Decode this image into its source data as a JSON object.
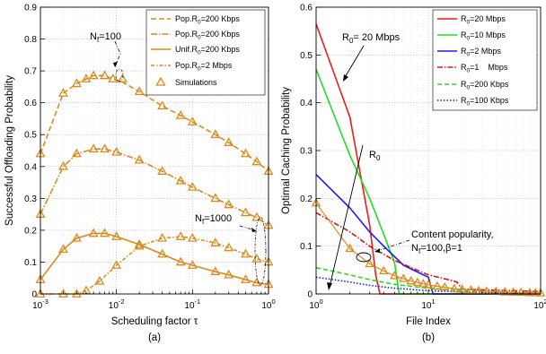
{
  "chart_data": [
    {
      "type": "line",
      "panel_label": "(a)",
      "xlabel": "Scheduling factor τ",
      "ylabel": "Successful Offloading Probability",
      "x_scale": "log",
      "xlim": [
        0.001,
        1
      ],
      "ylim": [
        0,
        0.9
      ],
      "x_ticks": [
        {
          "value": 0.001,
          "base": "10",
          "exp": "-3"
        },
        {
          "value": 0.01,
          "base": "10",
          "exp": "-2"
        },
        {
          "value": 0.1,
          "base": "10",
          "exp": "-1"
        },
        {
          "value": 1,
          "base": "10",
          "exp": "0"
        }
      ],
      "y_ticks": [
        0,
        0.1,
        0.2,
        0.3,
        0.4,
        0.5,
        0.6,
        0.7,
        0.8,
        0.9
      ],
      "y_tick_labels": [
        "0",
        "0.1",
        "0.2",
        "0.3",
        "0.4",
        "0.5",
        "0.6",
        "0.7",
        "0.8",
        "0.9"
      ],
      "grid": true,
      "legend_position": "top-right",
      "series": [
        {
          "name": "Pop.R0=200 Kbps",
          "legend_main": "Pop.R",
          "legend_sub": "0",
          "legend_rest": "=200 Kbps",
          "color": "#d98a1f",
          "dash": "6 3",
          "x": [
            0.001,
            0.002,
            0.003,
            0.004,
            0.005,
            0.007,
            0.009,
            0.012,
            0.02,
            0.04,
            0.07,
            0.1,
            0.2,
            0.3,
            0.5,
            0.7,
            1.0
          ],
          "y": [
            0.44,
            0.63,
            0.66,
            0.675,
            0.685,
            0.685,
            0.675,
            0.665,
            0.635,
            0.59,
            0.56,
            0.54,
            0.5,
            0.475,
            0.44,
            0.415,
            0.385
          ]
        },
        {
          "name": "Pop.R0=200 Kbps",
          "legend_main": "Pop.R",
          "legend_sub": "0",
          "legend_rest": "=200 Kbps",
          "color": "#d98a1f",
          "dash": "7 2 1.5 2",
          "x": [
            0.001,
            0.002,
            0.003,
            0.005,
            0.007,
            0.01,
            0.02,
            0.04,
            0.07,
            0.1,
            0.2,
            0.3,
            0.5,
            0.7,
            1.0
          ],
          "y": [
            0.25,
            0.4,
            0.44,
            0.455,
            0.455,
            0.445,
            0.42,
            0.385,
            0.355,
            0.335,
            0.3,
            0.28,
            0.255,
            0.24,
            0.215
          ]
        },
        {
          "name": "Unif.R0=200 Kbps",
          "legend_main": "Unif.R",
          "legend_sub": "0",
          "legend_rest": "=200 Kbps",
          "color": "#d98a1f",
          "dash": "",
          "x": [
            0.001,
            0.002,
            0.003,
            0.005,
            0.007,
            0.01,
            0.02,
            0.04,
            0.07,
            0.1,
            0.2,
            0.3,
            0.5,
            0.7,
            1.0
          ],
          "y": [
            0.045,
            0.14,
            0.175,
            0.19,
            0.19,
            0.18,
            0.155,
            0.125,
            0.1,
            0.09,
            0.07,
            0.06,
            0.045,
            0.035,
            0.03
          ]
        },
        {
          "name": "Pop.R0=2 Mbps",
          "legend_main": "Pop.R",
          "legend_sub": "0",
          "legend_rest": "=2 Mbps",
          "color": "#d98a1f",
          "dash": "4 2 1.5 2",
          "x": [
            0.001,
            0.002,
            0.003,
            0.004,
            0.006,
            0.01,
            0.02,
            0.04,
            0.07,
            0.1,
            0.2,
            0.3,
            0.5,
            0.7,
            1.0
          ],
          "y": [
            0.0,
            0.0,
            0.0,
            0.01,
            0.04,
            0.09,
            0.15,
            0.175,
            0.18,
            0.175,
            0.16,
            0.145,
            0.125,
            0.11,
            0.1
          ]
        }
      ],
      "simulations": {
        "name": "Simulations",
        "color": "#d98a1f",
        "sets": [
          {
            "x": [
              0.001,
              0.002,
              0.003,
              0.004,
              0.005,
              0.007,
              0.009,
              0.012,
              0.02,
              0.04,
              0.07,
              0.1,
              0.2,
              0.3,
              0.5,
              0.7,
              1.0
            ],
            "y": [
              0.44,
              0.63,
              0.66,
              0.675,
              0.685,
              0.685,
              0.675,
              0.675,
              0.635,
              0.59,
              0.56,
              0.54,
              0.5,
              0.475,
              0.44,
              0.415,
              0.385
            ]
          },
          {
            "x": [
              0.001,
              0.002,
              0.003,
              0.005,
              0.007,
              0.01,
              0.02,
              0.04,
              0.07,
              0.1,
              0.2,
              0.3,
              0.5,
              0.7,
              1.0
            ],
            "y": [
              0.25,
              0.4,
              0.44,
              0.455,
              0.455,
              0.445,
              0.42,
              0.385,
              0.355,
              0.335,
              0.3,
              0.28,
              0.255,
              0.24,
              0.215
            ]
          },
          {
            "x": [
              0.001,
              0.002,
              0.003,
              0.005,
              0.007,
              0.01,
              0.02,
              0.04,
              0.07,
              0.1,
              0.2,
              0.3,
              0.5,
              0.7,
              1.0
            ],
            "y": [
              0.045,
              0.14,
              0.175,
              0.19,
              0.19,
              0.18,
              0.155,
              0.125,
              0.1,
              0.09,
              0.07,
              0.06,
              0.045,
              0.035,
              0.03
            ]
          },
          {
            "x": [
              0.001,
              0.002,
              0.003,
              0.004,
              0.006,
              0.01,
              0.02,
              0.04,
              0.07,
              0.1,
              0.2,
              0.3,
              0.5,
              0.7,
              1.0
            ],
            "y": [
              0.0,
              0.0,
              0.0,
              0.01,
              0.04,
              0.09,
              0.15,
              0.175,
              0.18,
              0.175,
              0.16,
              0.145,
              0.125,
              0.11,
              0.1
            ]
          }
        ]
      },
      "annotations": [
        {
          "main": "N",
          "sub": "f",
          "rest": "=100"
        },
        {
          "main": "N",
          "sub": "f",
          "rest": "=1000"
        }
      ]
    },
    {
      "type": "line",
      "panel_label": "(b)",
      "xlabel": "File Index",
      "ylabel": "Optimal Caching Probability",
      "x_scale": "log",
      "xlim": [
        1,
        100
      ],
      "ylim": [
        0,
        0.6
      ],
      "x_ticks": [
        {
          "value": 1,
          "base": "10",
          "exp": "0"
        },
        {
          "value": 10,
          "base": "10",
          "exp": "1"
        },
        {
          "value": 100,
          "base": "10",
          "exp": "2"
        }
      ],
      "y_ticks": [
        0,
        0.1,
        0.2,
        0.3,
        0.4,
        0.5,
        0.6
      ],
      "y_tick_labels": [
        "0",
        "0.1",
        "0.2",
        "0.3",
        "0.4",
        "0.5",
        "0.6"
      ],
      "grid": true,
      "legend_position": "top-right",
      "series": [
        {
          "name": "R0=20 Mbps",
          "legend_main": "R",
          "legend_sub": "0",
          "legend_rest": "=20 Mbps",
          "color": "#ee1c1c",
          "dash": "",
          "x": [
            1,
            2,
            3,
            3.4,
            3.7,
            4,
            10,
            100
          ],
          "y": [
            0.565,
            0.37,
            0.145,
            0.04,
            0.0,
            0.0,
            0.0,
            0.0
          ]
        },
        {
          "name": "R0=10 Mbps",
          "legend_main": "R",
          "legend_sub": "0",
          "legend_rest": "=10 Mbps",
          "color": "#22dd22",
          "dash": "",
          "x": [
            1,
            2,
            3,
            4,
            5,
            5.5,
            10,
            100
          ],
          "y": [
            0.47,
            0.29,
            0.2,
            0.125,
            0.065,
            0.0,
            0.0,
            0.0
          ]
        },
        {
          "name": "R0=2 Mbps",
          "legend_main": "R",
          "legend_sub": "0",
          "legend_rest": "=2 Mbps",
          "color": "#1c1cee",
          "dash": "",
          "x": [
            1,
            2,
            3,
            4,
            6,
            9,
            10,
            11,
            100
          ],
          "y": [
            0.25,
            0.18,
            0.13,
            0.1,
            0.06,
            0.04,
            0.035,
            0.0,
            0.0
          ]
        },
        {
          "name": "R0=1 Mbps",
          "legend_main": "R",
          "legend_sub": "0",
          "legend_rest": "=1    Mbps",
          "color": "#dd1111",
          "dash": "6 2 1.5 2",
          "x": [
            1,
            2,
            3,
            5,
            10,
            15,
            18,
            20,
            100
          ],
          "y": [
            0.17,
            0.13,
            0.1,
            0.07,
            0.04,
            0.03,
            0.025,
            0.01,
            0.005
          ]
        },
        {
          "name": "R0=200 Kbps",
          "legend_main": "R",
          "legend_sub": "0",
          "legend_rest": "=200 Kbps",
          "color": "#22dd22",
          "dash": "5 3",
          "x": [
            1,
            2,
            3,
            5,
            10,
            20,
            40,
            100
          ],
          "y": [
            0.055,
            0.04,
            0.03,
            0.02,
            0.012,
            0.007,
            0.004,
            0.001
          ]
        },
        {
          "name": "R0=100 Kbps",
          "legend_main": "R",
          "legend_sub": "0",
          "legend_rest": "=100 Kbps",
          "color": "#1c1cee",
          "dash": "1.5 2",
          "x": [
            1,
            2,
            3,
            5,
            10,
            20,
            40,
            100
          ],
          "y": [
            0.035,
            0.025,
            0.018,
            0.012,
            0.007,
            0.004,
            0.002,
            0.0005
          ]
        }
      ],
      "popularity": {
        "color": "#d98a1f",
        "x": [
          1,
          2,
          3,
          4,
          5,
          6,
          7,
          8,
          9,
          10,
          12,
          14,
          17,
          20,
          24,
          28,
          33,
          40,
          48,
          57,
          67,
          80,
          90,
          100
        ],
        "y": [
          0.19,
          0.095,
          0.063,
          0.048,
          0.038,
          0.032,
          0.027,
          0.024,
          0.021,
          0.019,
          0.016,
          0.014,
          0.011,
          0.0095,
          0.008,
          0.0068,
          0.0058,
          0.0048,
          0.004,
          0.0034,
          0.0029,
          0.0024,
          0.0021,
          0.0019
        ]
      },
      "annotations": [
        {
          "main": "R",
          "sub": "0",
          "rest": "= 20 Mbps"
        },
        {
          "main": "R",
          "sub": "0",
          "rest": ""
        },
        {
          "line1": "Content popularity,",
          "line2_main": "N",
          "line2_sub": "f",
          "line2_rest": "=100,β=1"
        }
      ]
    }
  ]
}
